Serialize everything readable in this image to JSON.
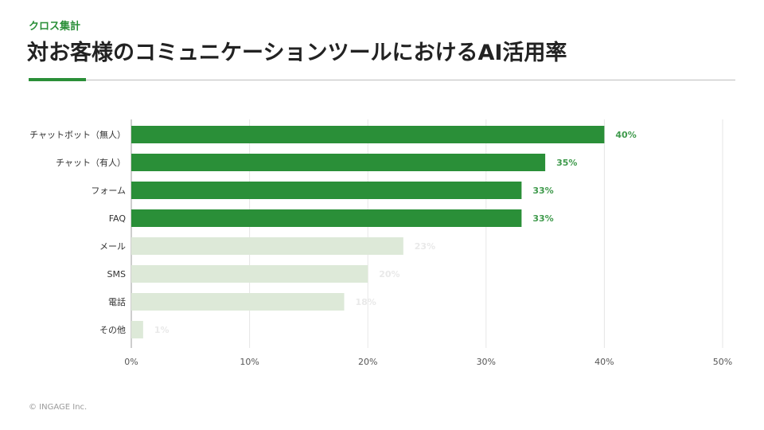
{
  "header": {
    "kicker": "クロス集計",
    "title": "対お客様のコミュニケーションツールにおけるAI活用率"
  },
  "footer": {
    "copyright": "© INGAGE Inc."
  },
  "colors": {
    "accent": "#2a8f38",
    "bar_highlight": "#2a8f38",
    "bar_muted": "#dde9d8",
    "label_highlight": "#3f9a4c",
    "label_muted": "#e9e9e9"
  },
  "chart_data": {
    "type": "bar",
    "orientation": "horizontal",
    "categories": [
      "チャットボット（無人）",
      "チャット（有人）",
      "フォーム",
      "FAQ",
      "メール",
      "SMS",
      "電話",
      "その他"
    ],
    "values": [
      40,
      35,
      33,
      33,
      23,
      20,
      18,
      1
    ],
    "value_labels": [
      "40%",
      "35%",
      "33%",
      "33%",
      "23%",
      "20%",
      "18%",
      "1%"
    ],
    "highlighted": [
      true,
      true,
      true,
      true,
      false,
      false,
      false,
      false
    ],
    "xlim": [
      0,
      50
    ],
    "xticks": [
      0,
      10,
      20,
      30,
      40,
      50
    ],
    "xtick_labels": [
      "0%",
      "10%",
      "20%",
      "30%",
      "40%",
      "50%"
    ],
    "grid": true
  }
}
